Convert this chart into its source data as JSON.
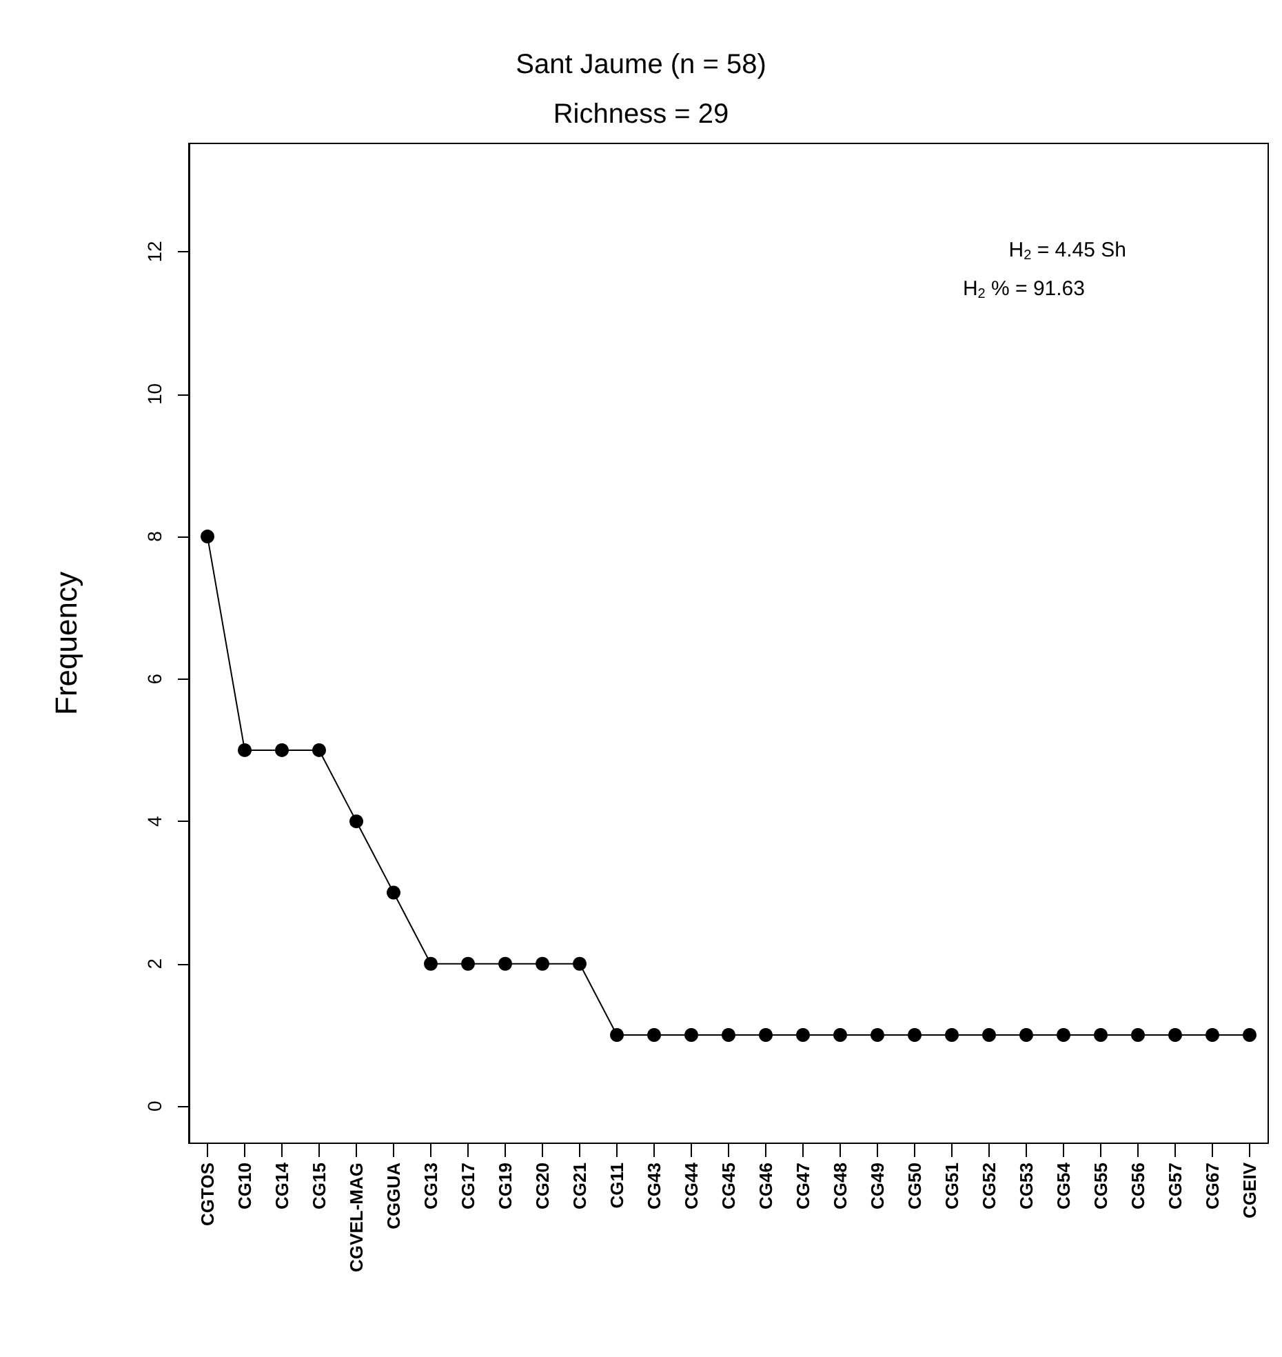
{
  "chart_data": {
    "type": "line",
    "title": "Sant Jaume (n = 58)",
    "subtitle": "Richness = 29",
    "ylabel": "Frequency",
    "categories": [
      "CGTOS",
      "CG10",
      "CG14",
      "CG15",
      "CGVEL-MAG",
      "CGGUA",
      "CG13",
      "CG17",
      "CG19",
      "CG20",
      "CG21",
      "CG11",
      "CG43",
      "CG44",
      "CG45",
      "CG46",
      "CG47",
      "CG48",
      "CG49",
      "CG50",
      "CG51",
      "CG52",
      "CG53",
      "CG54",
      "CG55",
      "CG56",
      "CG57",
      "CG67",
      "CGEIV"
    ],
    "values": [
      8,
      5,
      5,
      5,
      4,
      3,
      2,
      2,
      2,
      2,
      2,
      1,
      1,
      1,
      1,
      1,
      1,
      1,
      1,
      1,
      1,
      1,
      1,
      1,
      1,
      1,
      1,
      1,
      1
    ],
    "color": "#000000",
    "marker": "circle",
    "line_style": "solid",
    "grid": false,
    "ylim": [
      -0.52,
      13.52
    ],
    "yticks": [
      0,
      2,
      4,
      6,
      8,
      10,
      12
    ],
    "annotations": [
      "H$_{2}$ = 4.45 Sh",
      "H$_{2}$ % = 91.63"
    ]
  }
}
